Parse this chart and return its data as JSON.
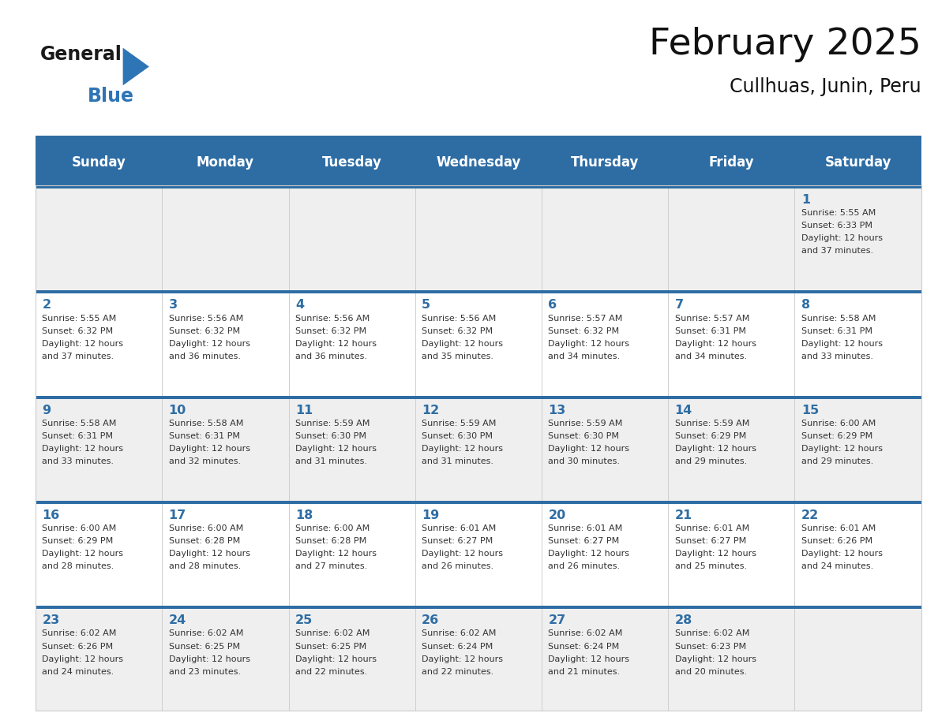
{
  "title": "February 2025",
  "subtitle": "Cullhuas, Junin, Peru",
  "days_of_week": [
    "Sunday",
    "Monday",
    "Tuesday",
    "Wednesday",
    "Thursday",
    "Friday",
    "Saturday"
  ],
  "header_bg": "#2E6DA4",
  "header_text": "#FFFFFF",
  "cell_bg_light": "#EFEFEF",
  "cell_bg_white": "#FFFFFF",
  "cell_border": "#CCCCCC",
  "row_top_line": "#2E6DA4",
  "day_number_color": "#2E6DA4",
  "text_color": "#333333",
  "logo_general_color": "#1a1a1a",
  "logo_blue_color": "#2E75B6",
  "calendar_data": [
    [
      null,
      null,
      null,
      null,
      null,
      null,
      {
        "day": 1,
        "sunrise": "5:55 AM",
        "sunset": "6:33 PM",
        "daylight_hours": 12,
        "daylight_minutes": 37
      }
    ],
    [
      {
        "day": 2,
        "sunrise": "5:55 AM",
        "sunset": "6:32 PM",
        "daylight_hours": 12,
        "daylight_minutes": 37
      },
      {
        "day": 3,
        "sunrise": "5:56 AM",
        "sunset": "6:32 PM",
        "daylight_hours": 12,
        "daylight_minutes": 36
      },
      {
        "day": 4,
        "sunrise": "5:56 AM",
        "sunset": "6:32 PM",
        "daylight_hours": 12,
        "daylight_minutes": 36
      },
      {
        "day": 5,
        "sunrise": "5:56 AM",
        "sunset": "6:32 PM",
        "daylight_hours": 12,
        "daylight_minutes": 35
      },
      {
        "day": 6,
        "sunrise": "5:57 AM",
        "sunset": "6:32 PM",
        "daylight_hours": 12,
        "daylight_minutes": 34
      },
      {
        "day": 7,
        "sunrise": "5:57 AM",
        "sunset": "6:31 PM",
        "daylight_hours": 12,
        "daylight_minutes": 34
      },
      {
        "day": 8,
        "sunrise": "5:58 AM",
        "sunset": "6:31 PM",
        "daylight_hours": 12,
        "daylight_minutes": 33
      }
    ],
    [
      {
        "day": 9,
        "sunrise": "5:58 AM",
        "sunset": "6:31 PM",
        "daylight_hours": 12,
        "daylight_minutes": 33
      },
      {
        "day": 10,
        "sunrise": "5:58 AM",
        "sunset": "6:31 PM",
        "daylight_hours": 12,
        "daylight_minutes": 32
      },
      {
        "day": 11,
        "sunrise": "5:59 AM",
        "sunset": "6:30 PM",
        "daylight_hours": 12,
        "daylight_minutes": 31
      },
      {
        "day": 12,
        "sunrise": "5:59 AM",
        "sunset": "6:30 PM",
        "daylight_hours": 12,
        "daylight_minutes": 31
      },
      {
        "day": 13,
        "sunrise": "5:59 AM",
        "sunset": "6:30 PM",
        "daylight_hours": 12,
        "daylight_minutes": 30
      },
      {
        "day": 14,
        "sunrise": "5:59 AM",
        "sunset": "6:29 PM",
        "daylight_hours": 12,
        "daylight_minutes": 29
      },
      {
        "day": 15,
        "sunrise": "6:00 AM",
        "sunset": "6:29 PM",
        "daylight_hours": 12,
        "daylight_minutes": 29
      }
    ],
    [
      {
        "day": 16,
        "sunrise": "6:00 AM",
        "sunset": "6:29 PM",
        "daylight_hours": 12,
        "daylight_minutes": 28
      },
      {
        "day": 17,
        "sunrise": "6:00 AM",
        "sunset": "6:28 PM",
        "daylight_hours": 12,
        "daylight_minutes": 28
      },
      {
        "day": 18,
        "sunrise": "6:00 AM",
        "sunset": "6:28 PM",
        "daylight_hours": 12,
        "daylight_minutes": 27
      },
      {
        "day": 19,
        "sunrise": "6:01 AM",
        "sunset": "6:27 PM",
        "daylight_hours": 12,
        "daylight_minutes": 26
      },
      {
        "day": 20,
        "sunrise": "6:01 AM",
        "sunset": "6:27 PM",
        "daylight_hours": 12,
        "daylight_minutes": 26
      },
      {
        "day": 21,
        "sunrise": "6:01 AM",
        "sunset": "6:27 PM",
        "daylight_hours": 12,
        "daylight_minutes": 25
      },
      {
        "day": 22,
        "sunrise": "6:01 AM",
        "sunset": "6:26 PM",
        "daylight_hours": 12,
        "daylight_minutes": 24
      }
    ],
    [
      {
        "day": 23,
        "sunrise": "6:02 AM",
        "sunset": "6:26 PM",
        "daylight_hours": 12,
        "daylight_minutes": 24
      },
      {
        "day": 24,
        "sunrise": "6:02 AM",
        "sunset": "6:25 PM",
        "daylight_hours": 12,
        "daylight_minutes": 23
      },
      {
        "day": 25,
        "sunrise": "6:02 AM",
        "sunset": "6:25 PM",
        "daylight_hours": 12,
        "daylight_minutes": 22
      },
      {
        "day": 26,
        "sunrise": "6:02 AM",
        "sunset": "6:24 PM",
        "daylight_hours": 12,
        "daylight_minutes": 22
      },
      {
        "day": 27,
        "sunrise": "6:02 AM",
        "sunset": "6:24 PM",
        "daylight_hours": 12,
        "daylight_minutes": 21
      },
      {
        "day": 28,
        "sunrise": "6:02 AM",
        "sunset": "6:23 PM",
        "daylight_hours": 12,
        "daylight_minutes": 20
      },
      null
    ]
  ]
}
